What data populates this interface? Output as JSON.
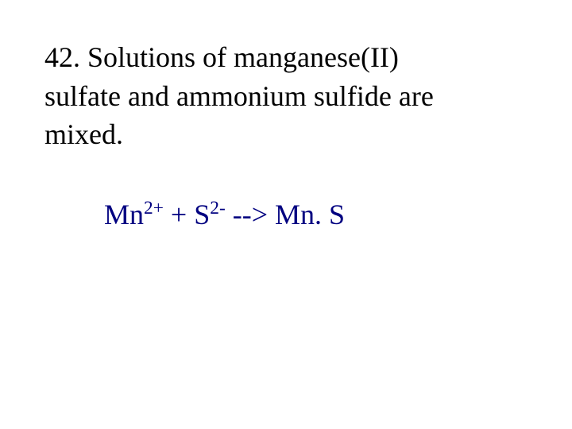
{
  "question": {
    "number": "42.",
    "text_line1": "Solutions of manganese(II)",
    "text_line2": "sulfate and ammonium sulfide are",
    "text_line3": "mixed."
  },
  "equation": {
    "species1": "Mn",
    "charge1": "2+",
    "plus": " + ",
    "species2": "S",
    "charge2": "2-",
    "arrow": " --> ",
    "product": "Mn. S"
  },
  "colors": {
    "text": "#000000",
    "equation": "#000080",
    "background": "#ffffff"
  },
  "typography": {
    "font_family": "Times New Roman",
    "base_fontsize": 36,
    "sup_fontsize": 23
  }
}
